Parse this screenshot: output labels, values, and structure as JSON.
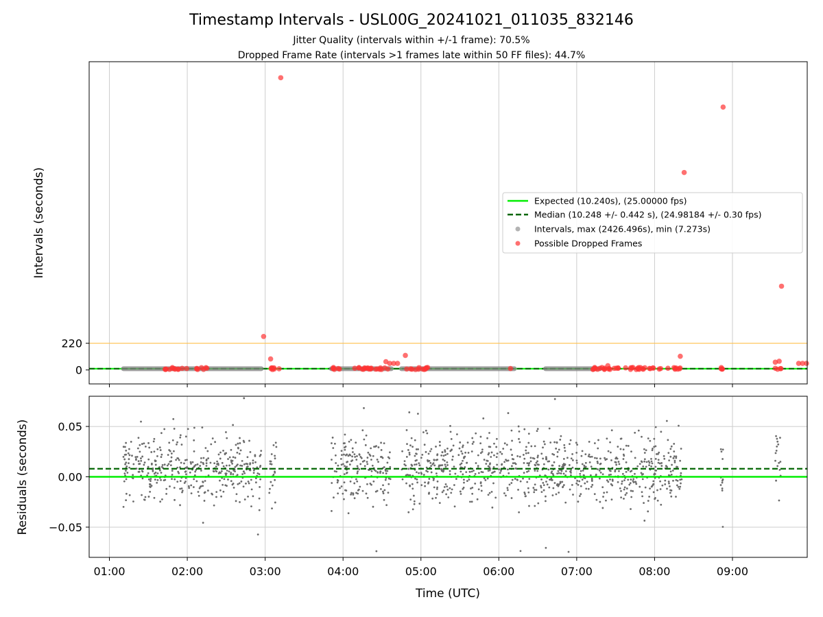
{
  "title": "Timestamp Intervals - USL00G_20241021_011035_832146",
  "subtitle_lines": [
    "Jitter Quality (intervals within +/-1 frame): 70.5%",
    "Dropped Frame Rate (intervals >1 frames late within 50 FF files): 44.7%"
  ],
  "colors": {
    "expected": "#00ee00",
    "median": "#006400",
    "intervals": "#808080",
    "dropped": "#ff3333",
    "threshold": "#ffc04d",
    "grid": "#cccccc",
    "residual_points": "#6b6b6b"
  },
  "chart_data": [
    {
      "type": "scatter",
      "panel": "top",
      "xlabel": "Time (UTC)",
      "ylabel": "Intervals (seconds)",
      "x_tick_labels": [
        "01:00",
        "02:00",
        "03:00",
        "04:00",
        "05:00",
        "06:00",
        "07:00",
        "08:00",
        "09:00"
      ],
      "x_tick_hours": [
        1,
        2,
        3,
        4,
        5,
        6,
        7,
        8,
        9
      ],
      "xlim_hours": [
        0.74,
        9.96
      ],
      "y_tick_labels": [
        "0",
        "220"
      ],
      "y_tick_values": [
        0,
        220
      ],
      "ylim": [
        -115,
        2540
      ],
      "grid": "vertical",
      "legend": {
        "placement": "center-right",
        "entries": [
          {
            "label": "Expected (10.240s), (25.00000 fps)",
            "kind": "line-solid",
            "color": "#00ee00"
          },
          {
            "label": "Median (10.248 +/- 0.442 s), (24.98184 +/- 0.30 fps)",
            "kind": "line-dashed",
            "color": "#006400"
          },
          {
            "label": "Intervals, max (2426.496s), min (7.273s)",
            "kind": "marker",
            "color": "#808080"
          },
          {
            "label": "Possible Dropped Frames",
            "kind": "marker",
            "color": "#ff3333"
          }
        ]
      },
      "series": [
        {
          "name": "Expected (10.240s), (25.00000 fps)",
          "kind": "hline",
          "y": 10.24
        },
        {
          "name": "Median (10.248 +/- 0.442 s), (24.98184 +/- 0.30 fps)",
          "kind": "hline-dashed",
          "y": 10.248
        },
        {
          "name": "threshold",
          "kind": "hline",
          "y": 220
        },
        {
          "name": "Intervals, max (2426.496s), min (7.273s)",
          "kind": "segments",
          "ranges_hours": [
            [
              1.18,
              2.95
            ],
            [
              3.85,
              4.62
            ],
            [
              4.75,
              6.2
            ],
            [
              6.6,
              7.3
            ]
          ],
          "y": 10.24
        },
        {
          "name": "Possible Dropped Frames",
          "kind": "points",
          "x_hours": [
            3.2,
            2.98,
            3.07,
            4.55,
            4.8,
            4.6,
            4.65,
            4.7,
            6.15,
            7.4,
            8.33,
            8.38,
            8.88,
            9.55,
            9.6,
            9.63,
            9.85,
            9.9,
            9.95
          ],
          "y": [
            2408,
            276,
            91,
            68,
            120,
            54,
            54,
            54,
            12,
            35,
            113,
            1627,
            2166,
            64,
            72,
            690,
            54,
            54,
            54
          ]
        },
        {
          "name": "dropped-clusters",
          "kind": "dense-ranges",
          "ranges_hours": [
            [
              1.7,
              2.0
            ],
            [
              2.1,
              2.28
            ],
            [
              3.03,
              3.2
            ],
            [
              3.85,
              4.0
            ],
            [
              4.1,
              4.6
            ],
            [
              4.8,
              5.1
            ],
            [
              7.2,
              8.35
            ],
            [
              8.85,
              8.88
            ],
            [
              9.55,
              9.63
            ]
          ],
          "y": 12
        }
      ]
    },
    {
      "type": "scatter",
      "panel": "bottom",
      "xlabel": "Time (UTC)",
      "ylabel": "Residuals (seconds)",
      "x_tick_labels": [
        "01:00",
        "02:00",
        "03:00",
        "04:00",
        "05:00",
        "06:00",
        "07:00",
        "08:00",
        "09:00"
      ],
      "x_tick_hours": [
        1,
        2,
        3,
        4,
        5,
        6,
        7,
        8,
        9
      ],
      "xlim_hours": [
        0.74,
        9.96
      ],
      "y_tick_labels": [
        "0.05",
        "0.00",
        "−0.05"
      ],
      "y_tick_values": [
        0.05,
        0.0,
        -0.05
      ],
      "ylim": [
        -0.08,
        0.08
      ],
      "grid": "both",
      "series": [
        {
          "name": "expected",
          "kind": "hline",
          "y": 0.0
        },
        {
          "name": "median",
          "kind": "hline-dashed",
          "y": 0.008
        },
        {
          "name": "residuals",
          "kind": "points",
          "clusters_hours": [
            [
              1.18,
              2.95
            ],
            [
              3.05,
              3.15
            ],
            [
              3.85,
              4.62
            ],
            [
              4.75,
              7.3
            ],
            [
              7.3,
              8.35
            ],
            [
              8.85,
              8.88
            ],
            [
              9.55,
              9.62
            ]
          ],
          "center": 0.008,
          "spread": 0.025
        }
      ]
    }
  ]
}
